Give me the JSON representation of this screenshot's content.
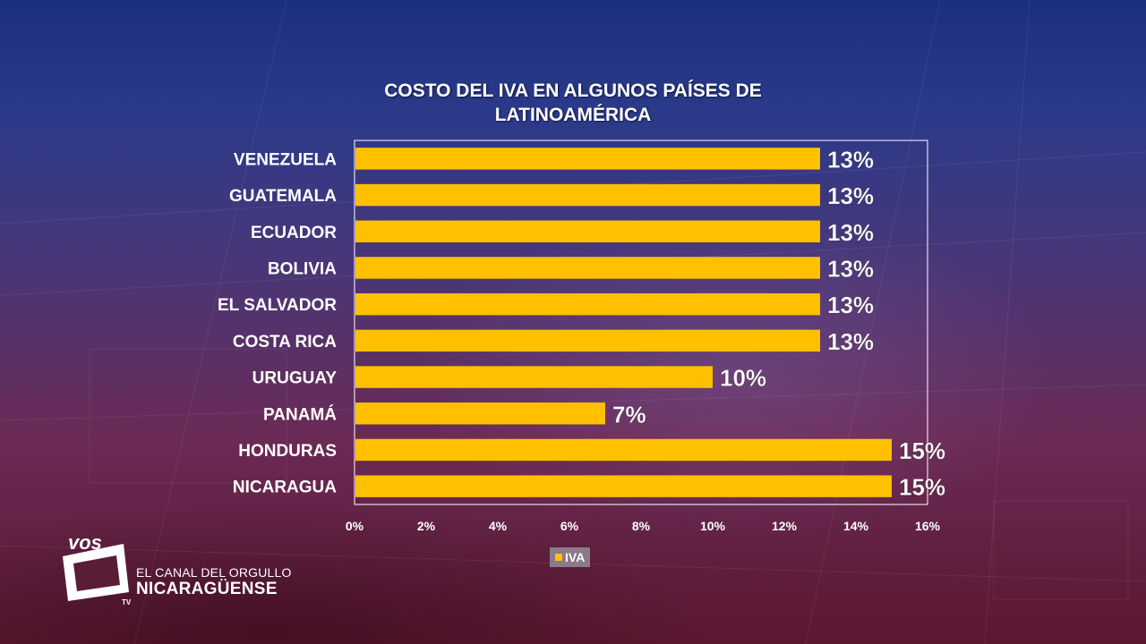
{
  "chart_data": {
    "type": "bar",
    "orientation": "horizontal",
    "title": "COSTO DEL IVA EN ALGUNOS PAÍSES DE LATINOAMÉRICA",
    "title_lines": [
      "COSTO DEL IVA EN ALGUNOS PAÍSES DE",
      "LATINOAMÉRICA"
    ],
    "categories": [
      "VENEZUELA",
      "GUATEMALA",
      "ECUADOR",
      "BOLIVIA",
      "EL SALVADOR",
      "COSTA RICA",
      "URUGUAY",
      "PANAMÁ",
      "HONDURAS",
      "NICARAGUA"
    ],
    "series": [
      {
        "name": "IVA",
        "values": [
          13,
          13,
          13,
          13,
          13,
          13,
          10,
          7,
          15,
          15
        ],
        "data_labels": [
          "13%",
          "13%",
          "13%",
          "13%",
          "13%",
          "13%",
          "10%",
          "7%",
          "15%",
          "15%"
        ],
        "color": "#ffc000"
      }
    ],
    "xlim": [
      0,
      16
    ],
    "x_ticks": [
      0,
      2,
      4,
      6,
      8,
      10,
      12,
      14,
      16
    ],
    "x_tick_labels": [
      "0%",
      "2%",
      "4%",
      "6%",
      "8%",
      "10%",
      "12%",
      "14%",
      "16%"
    ],
    "grid": false,
    "legend": {
      "placement": "bottom",
      "label": "IVA"
    }
  },
  "branding": {
    "logo_text": "vos",
    "logo_sub": "TV",
    "tagline": "EL CANAL DEL ORGULLO",
    "channel_name": "NICARAGÜENSE"
  },
  "colors": {
    "bar": "#ffc000",
    "text": "#ffffff",
    "plot_border": "#ffffff"
  }
}
